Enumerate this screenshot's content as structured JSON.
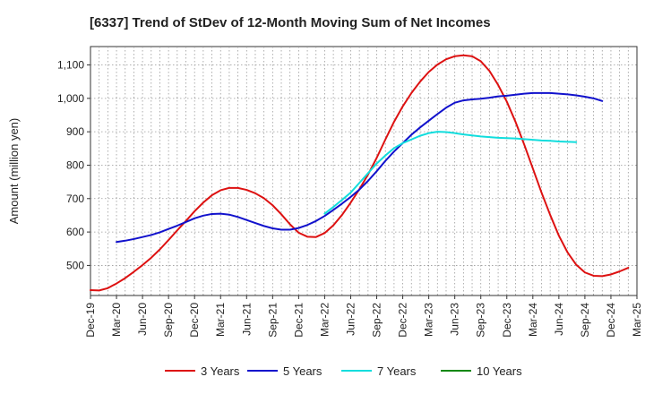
{
  "chart_data": {
    "type": "line",
    "title": "[6337]  Trend of StDev of 12-Month Moving Sum of Net Incomes",
    "ylabel": "Amount (million yen)",
    "xlabel": "",
    "ylim": [
      410,
      1155
    ],
    "yticks": [
      500,
      600,
      700,
      800,
      900,
      1000,
      1100
    ],
    "ytick_labels": [
      "500",
      "600",
      "700",
      "800",
      "900",
      "1,000",
      "1,100"
    ],
    "x_categories": [
      "Dec-19",
      "Mar-20",
      "Jun-20",
      "Sep-20",
      "Dec-20",
      "Mar-21",
      "Jun-21",
      "Sep-21",
      "Dec-21",
      "Mar-22",
      "Jun-22",
      "Sep-22",
      "Dec-22",
      "Mar-23",
      "Jun-23",
      "Sep-23",
      "Dec-23",
      "Mar-24",
      "Jun-24",
      "Sep-24",
      "Dec-24",
      "Mar-25"
    ],
    "grid": true,
    "legend_position": "bottom",
    "series": [
      {
        "name": "3 Years",
        "color": "#dd1111",
        "start_index": 0,
        "values": [
          426,
          425,
          432,
          446,
          462,
          481,
          501,
          523,
          548,
          576,
          605,
          633,
          662,
          688,
          710,
          725,
          732,
          732,
          726,
          716,
          701,
          680,
          653,
          623,
          598,
          586,
          585,
          597,
          620,
          651,
          688,
          728,
          772,
          822,
          877,
          930,
          976,
          1016,
          1050,
          1079,
          1101,
          1117,
          1126,
          1129,
          1126,
          1111,
          1082,
          1040,
          990,
          930,
          862,
          790,
          718,
          651,
          589,
          539,
          502,
          479,
          469,
          468,
          473,
          482,
          493
        ]
      },
      {
        "name": "5 Years",
        "color": "#1111cc",
        "start_index": 3,
        "values": [
          570,
          574,
          579,
          585,
          591,
          599,
          609,
          619,
          630,
          641,
          649,
          654,
          655,
          652,
          645,
          636,
          627,
          618,
          611,
          607,
          607,
          612,
          621,
          633,
          648,
          666,
          685,
          705,
          727,
          753,
          782,
          813,
          841,
          866,
          891,
          913,
          933,
          953,
          972,
          987,
          994,
          997,
          999,
          1002,
          1006,
          1008,
          1011,
          1014,
          1016,
          1016,
          1016,
          1014,
          1012,
          1009,
          1005,
          1000,
          992
        ]
      },
      {
        "name": "7 Years",
        "color": "#11dddd",
        "start_index": 27,
        "values": [
          655,
          675,
          696,
          718,
          747,
          776,
          805,
          829,
          851,
          866,
          877,
          888,
          896,
          900,
          899,
          896,
          892,
          889,
          886,
          884,
          882,
          881,
          880,
          878,
          876,
          874,
          873,
          871,
          870,
          869
        ]
      },
      {
        "name": "10 Years",
        "color": "#118811",
        "start_index": 0,
        "values": []
      }
    ]
  }
}
